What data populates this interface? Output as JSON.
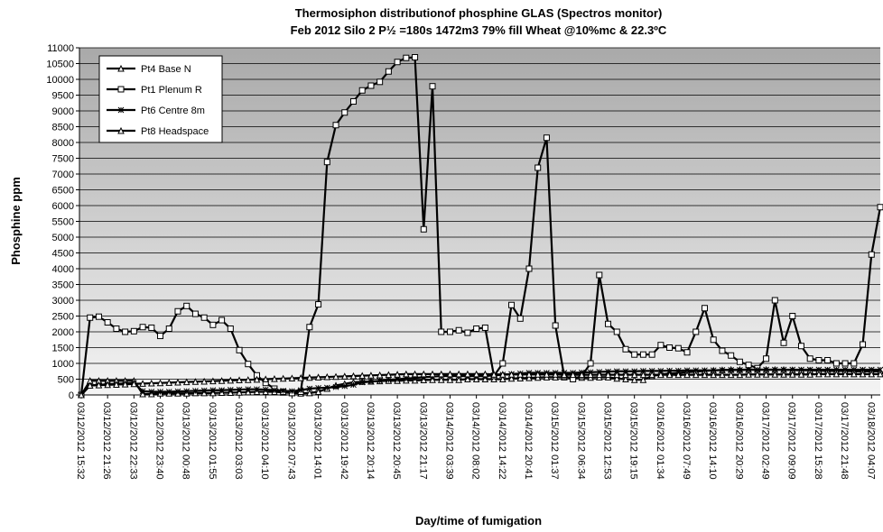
{
  "chart_data": {
    "type": "line",
    "title": [
      "Thermosiphon distributionof phosphine GLAS (Spectros monitor)",
      "Feb 2012 Silo 2 P½ =180s 1472m3 79% fill Wheat @10%mc & 22.3ºC"
    ],
    "x_label": "Day/time of fumigation",
    "y_label": "Phosphine ppm",
    "categories": [
      "03/12/2012 15:32",
      null,
      null,
      "03/12/2012 21:26",
      null,
      null,
      "03/12/2012 22:33",
      null,
      null,
      "03/12/2012 23:40",
      null,
      null,
      "03/13/2012 00:48",
      null,
      null,
      "03/13/2012 01:55",
      null,
      null,
      "03/13/2012 03:03",
      null,
      null,
      "03/13/2012 04:10",
      null,
      null,
      "03/13/2012 07:43",
      null,
      null,
      "03/13/2012 14:01",
      null,
      null,
      "03/13/2012 19:42",
      null,
      null,
      "03/13/2012 20:14",
      null,
      null,
      "03/13/2012 20:45",
      null,
      null,
      "03/13/2012 21:17",
      null,
      null,
      "03/14/2012 03:39",
      null,
      null,
      "03/14/2012 08:02",
      null,
      null,
      "03/14/2012 14:22",
      null,
      null,
      "03/14/2012 20:41",
      null,
      null,
      "03/15/2012 01:37",
      null,
      null,
      "03/15/2012 06:34",
      null,
      null,
      "03/15/2012 12:53",
      null,
      null,
      "03/15/2012 19:15",
      null,
      null,
      "03/16/2012 01:34",
      null,
      null,
      "03/16/2012 07:49",
      null,
      null,
      "03/16/2012 14:10",
      null,
      null,
      "03/16/2012 20:29",
      null,
      null,
      "03/17/2012 02:49",
      null,
      null,
      "03/17/2012 09:09",
      null,
      null,
      "03/17/2012 15:28",
      null,
      null,
      "03/17/2012 21:48",
      null,
      null,
      "03/18/2012 04:07",
      null
    ],
    "series": [
      {
        "name": "Pt4 Base N",
        "color": "#000000",
        "marker": "triangle",
        "values": [
          0,
          450,
          450,
          450,
          450,
          450,
          450,
          30,
          30,
          50,
          50,
          50,
          50,
          60,
          60,
          60,
          70,
          70,
          80,
          90,
          100,
          100,
          100,
          80,
          60,
          50,
          60,
          100,
          200,
          300,
          350,
          400,
          420,
          430,
          440,
          450,
          450,
          460,
          460,
          470,
          480,
          480,
          480,
          480,
          500,
          500,
          500,
          500,
          500,
          520,
          530,
          540,
          550,
          560,
          560,
          560,
          550,
          550,
          550,
          560,
          560,
          520,
          500,
          480,
          480,
          600,
          650,
          680,
          700,
          720,
          740,
          760,
          780,
          790,
          800,
          800,
          800,
          800,
          800,
          800,
          800,
          790,
          780,
          780,
          770,
          760,
          760,
          760,
          750,
          750,
          750,
          750
        ]
      },
      {
        "name": "Pt1 Plenum R",
        "color": "#000000",
        "marker": "square",
        "values": [
          0,
          2450,
          2480,
          2300,
          2100,
          2000,
          2020,
          2150,
          2130,
          1870,
          2100,
          2650,
          2820,
          2570,
          2450,
          2220,
          2370,
          2100,
          1420,
          980,
          620,
          380,
          200,
          100,
          60,
          100,
          2150,
          2870,
          7380,
          8550,
          8950,
          9300,
          9650,
          9800,
          9920,
          10250,
          10550,
          10680,
          10700,
          5250,
          9780,
          2000,
          2000,
          2050,
          1970,
          2100,
          2130,
          600,
          1000,
          2850,
          2420,
          4000,
          7200,
          8150,
          2200,
          600,
          500,
          600,
          1000,
          3800,
          2250,
          2000,
          1450,
          1280,
          1280,
          1280,
          1580,
          1500,
          1480,
          1350,
          2000,
          2750,
          1750,
          1400,
          1250,
          1050,
          950,
          850,
          1150,
          3000,
          1650,
          2500,
          1550,
          1150,
          1100,
          1100,
          1000,
          1000,
          1000,
          1600,
          4450,
          5950
        ]
      },
      {
        "name": "Pt6 Centre 8m",
        "color": "#000000",
        "marker": "star",
        "values": [
          0,
          300,
          320,
          340,
          350,
          360,
          380,
          120,
          100,
          100,
          100,
          110,
          120,
          130,
          140,
          150,
          150,
          160,
          170,
          180,
          180,
          170,
          150,
          130,
          120,
          150,
          200,
          220,
          230,
          250,
          280,
          320,
          400,
          420,
          450,
          480,
          500,
          520,
          540,
          560,
          580,
          600,
          600,
          600,
          600,
          600,
          600,
          620,
          640,
          660,
          680,
          700,
          700,
          700,
          700,
          700,
          700,
          710,
          720,
          730,
          740,
          750,
          750,
          750,
          760,
          760,
          760,
          770,
          770,
          780,
          780,
          780,
          780,
          790,
          790,
          790,
          800,
          800,
          800,
          800,
          800,
          800,
          800,
          800,
          800,
          800,
          800,
          800,
          800,
          800,
          800,
          800
        ]
      },
      {
        "name": "Pt8 Headspace",
        "color": "#000000",
        "marker": "triangle",
        "values": [
          0,
          300,
          310,
          320,
          330,
          340,
          350,
          360,
          370,
          380,
          390,
          400,
          410,
          420,
          430,
          440,
          450,
          460,
          470,
          480,
          490,
          500,
          510,
          520,
          530,
          540,
          550,
          560,
          570,
          580,
          590,
          600,
          610,
          620,
          630,
          640,
          650,
          660,
          660,
          660,
          660,
          660,
          660,
          660,
          660,
          660,
          660,
          650,
          650,
          650,
          650,
          650,
          650,
          650,
          650,
          640,
          640,
          640,
          640,
          640,
          640,
          640,
          640,
          640,
          640,
          640,
          640,
          640,
          640,
          640,
          640,
          640,
          640,
          640,
          640,
          640,
          650,
          650,
          650,
          650,
          650,
          650,
          650,
          650,
          660,
          660,
          660,
          660,
          660,
          660,
          660,
          660
        ]
      }
    ],
    "ylim": [
      0,
      11000
    ],
    "yticks": [
      0,
      500,
      1000,
      1500,
      2000,
      2500,
      3000,
      3500,
      4000,
      4500,
      5000,
      5500,
      6000,
      6500,
      7000,
      7500,
      8000,
      8500,
      9000,
      9500,
      10000,
      10500,
      11000
    ],
    "grid": true,
    "legend": "upper left"
  }
}
